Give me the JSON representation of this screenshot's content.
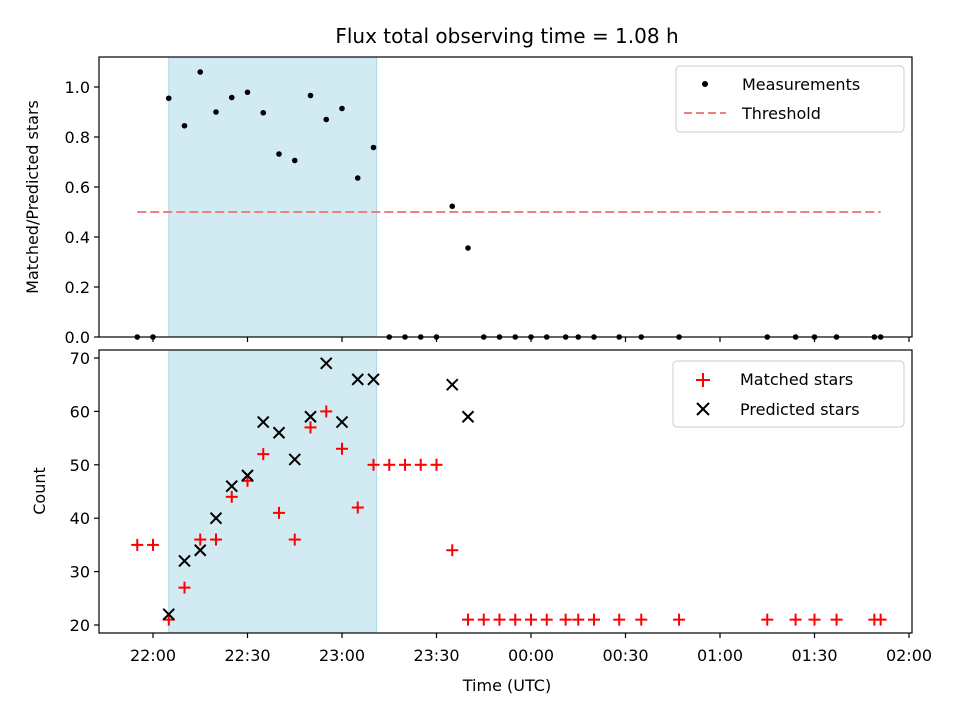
{
  "chart_data": {
    "title": "Flux total observing time = 1.08 h",
    "xlabel": "Time (UTC)",
    "x_ticks": [
      "22:00",
      "22:30",
      "23:00",
      "23:30",
      "00:00",
      "00:30",
      "01:00",
      "01:30",
      "02:00"
    ],
    "shaded_interval": [
      "22:05",
      "23:11"
    ],
    "shade_color": "#add8e6",
    "panels": [
      {
        "type": "scatter",
        "ylabel": "Matched/Predicted stars",
        "ylim": [
          0,
          1.12
        ],
        "y_ticks": [
          "0.0",
          "0.2",
          "0.4",
          "0.6",
          "0.8",
          "1.0"
        ],
        "legend_position": "top-right",
        "series": [
          {
            "name": "Measurements",
            "marker": "dot",
            "color": "#000000",
            "points": [
              [
                "21:55",
                0.0
              ],
              [
                "22:00",
                0.0
              ],
              [
                "22:05",
                0.955
              ],
              [
                "22:10",
                0.845
              ],
              [
                "22:15",
                1.06
              ],
              [
                "22:20",
                0.9
              ],
              [
                "22:25",
                0.958
              ],
              [
                "22:30",
                0.979
              ],
              [
                "22:35",
                0.897
              ],
              [
                "22:40",
                0.732
              ],
              [
                "22:45",
                0.706
              ],
              [
                "22:50",
                0.966
              ],
              [
                "22:55",
                0.87
              ],
              [
                "23:00",
                0.914
              ],
              [
                "23:05",
                0.636
              ],
              [
                "23:10",
                0.758
              ],
              [
                "23:15",
                0.0
              ],
              [
                "23:20",
                0.0
              ],
              [
                "23:25",
                0.0
              ],
              [
                "23:30",
                0.0
              ],
              [
                "23:35",
                0.523
              ],
              [
                "23:40",
                0.356
              ],
              [
                "23:45",
                0.0
              ],
              [
                "23:50",
                0.0
              ],
              [
                "23:55",
                0.0
              ],
              [
                "00:00",
                0.0
              ],
              [
                "00:05",
                0.0
              ],
              [
                "00:11",
                0.0
              ],
              [
                "00:15",
                0.0
              ],
              [
                "00:20",
                0.0
              ],
              [
                "00:28",
                0.0
              ],
              [
                "00:35",
                0.0
              ],
              [
                "00:47",
                0.0
              ],
              [
                "01:15",
                0.0
              ],
              [
                "01:24",
                0.0
              ],
              [
                "01:30",
                0.0
              ],
              [
                "01:37",
                0.0
              ],
              [
                "01:49",
                0.0
              ],
              [
                "01:51",
                0.0
              ]
            ]
          },
          {
            "name": "Threshold",
            "marker": "dashed-line",
            "color": "#f08080",
            "points": [
              [
                "21:55",
                0.5
              ],
              [
                "01:51",
                0.5
              ]
            ]
          }
        ]
      },
      {
        "type": "scatter",
        "ylabel": "Count",
        "ylim": [
          18.5,
          71.5
        ],
        "y_ticks": [
          "20",
          "30",
          "40",
          "50",
          "60",
          "70"
        ],
        "legend_position": "top-right",
        "series": [
          {
            "name": "Matched stars",
            "marker": "plus",
            "color": "#ff0000",
            "points": [
              [
                "21:55",
                35
              ],
              [
                "22:00",
                35
              ],
              [
                "22:05",
                21
              ],
              [
                "22:10",
                27
              ],
              [
                "22:15",
                36
              ],
              [
                "22:20",
                36
              ],
              [
                "22:25",
                44
              ],
              [
                "22:30",
                47
              ],
              [
                "22:35",
                52
              ],
              [
                "22:40",
                41
              ],
              [
                "22:45",
                36
              ],
              [
                "22:50",
                57
              ],
              [
                "22:55",
                60
              ],
              [
                "23:00",
                53
              ],
              [
                "23:05",
                42
              ],
              [
                "23:10",
                50
              ],
              [
                "23:15",
                50
              ],
              [
                "23:20",
                50
              ],
              [
                "23:25",
                50
              ],
              [
                "23:30",
                50
              ],
              [
                "23:35",
                34
              ],
              [
                "23:40",
                21
              ],
              [
                "23:45",
                21
              ],
              [
                "23:50",
                21
              ],
              [
                "23:55",
                21
              ],
              [
                "00:00",
                21
              ],
              [
                "00:05",
                21
              ],
              [
                "00:11",
                21
              ],
              [
                "00:15",
                21
              ],
              [
                "00:20",
                21
              ],
              [
                "00:28",
                21
              ],
              [
                "00:35",
                21
              ],
              [
                "00:47",
                21
              ],
              [
                "01:15",
                21
              ],
              [
                "01:24",
                21
              ],
              [
                "01:30",
                21
              ],
              [
                "01:37",
                21
              ],
              [
                "01:49",
                21
              ],
              [
                "01:51",
                21
              ]
            ]
          },
          {
            "name": "Predicted stars",
            "marker": "x",
            "color": "#000000",
            "points": [
              [
                "22:05",
                22
              ],
              [
                "22:10",
                32
              ],
              [
                "22:15",
                34
              ],
              [
                "22:20",
                40
              ],
              [
                "22:25",
                46
              ],
              [
                "22:30",
                48
              ],
              [
                "22:35",
                58
              ],
              [
                "22:40",
                56
              ],
              [
                "22:45",
                51
              ],
              [
                "22:50",
                59
              ],
              [
                "22:55",
                69
              ],
              [
                "23:00",
                58
              ],
              [
                "23:05",
                66
              ],
              [
                "23:10",
                66
              ],
              [
                "23:35",
                65
              ],
              [
                "23:40",
                59
              ]
            ]
          }
        ]
      }
    ]
  }
}
